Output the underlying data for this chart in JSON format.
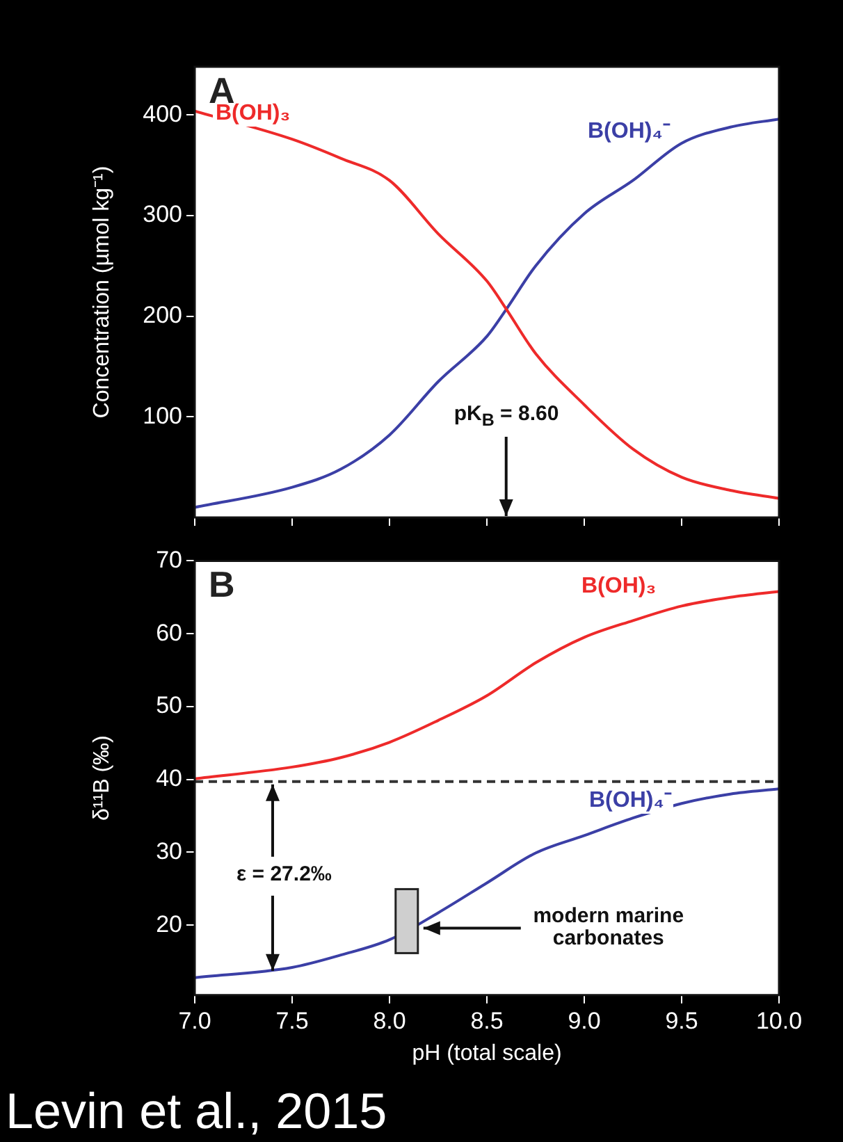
{
  "chart_data": [
    {
      "type": "line",
      "ylabel": "Concentration (µmol kg⁻¹)",
      "x": [
        7,
        7.5,
        7.75,
        8,
        8.25,
        8.5,
        8.6,
        8.75,
        9,
        9.25,
        9.5,
        9.75,
        10
      ],
      "series": [
        {
          "name": "B(OH)₃",
          "color": "#ee2a2a",
          "values": [
            404,
            376,
            357,
            335,
            282,
            235,
            207,
            163,
            112,
            68,
            40,
            27,
            19
          ]
        },
        {
          "name": "B(OH)₄⁻",
          "color": "#3b3fa6",
          "values": [
            10,
            30,
            48,
            82,
            135,
            180,
            207,
            250,
            302,
            335,
            372,
            388,
            396
          ]
        }
      ],
      "xlim": [
        7,
        10
      ],
      "xticks": [
        7,
        7.5,
        8,
        8.5,
        9,
        9.5,
        10
      ],
      "ylim": [
        0,
        448
      ],
      "yticks": [
        100,
        200,
        300,
        400
      ],
      "tick_labels": "y",
      "annotations": [
        "A",
        "pK$_{B}$ = 8.60"
      ]
    },
    {
      "type": "line",
      "xlabel": "pH (total scale)",
      "ylabel": "δ¹¹B (‰)",
      "x": [
        7,
        7.5,
        7.75,
        8,
        8.25,
        8.5,
        8.75,
        9,
        9.25,
        9.5,
        9.75,
        10
      ],
      "series": [
        {
          "name": "B(OH)₃",
          "color": "#ee2a2a",
          "values": [
            40.1,
            41.7,
            43,
            45.1,
            48.1,
            51.5,
            56,
            59.5,
            61.8,
            63.8,
            65,
            65.8
          ]
        },
        {
          "name": "B(OH)₄⁻",
          "color": "#3b3fa6",
          "values": [
            12.8,
            14.2,
            15.9,
            18,
            21.7,
            25.8,
            29.9,
            32.3,
            34.7,
            36.7,
            38,
            38.7
          ]
        }
      ],
      "xlim": [
        7,
        10
      ],
      "xticks": [
        {
          "value": 7,
          "label": "7.0"
        },
        7.5,
        {
          "value": 8,
          "label": "8.0"
        },
        8.5,
        {
          "value": 9,
          "label": "9.0"
        },
        9.5,
        {
          "value": 10,
          "label": "10.0"
        }
      ],
      "ylim": [
        10.4,
        70
      ],
      "yticks": [
        20,
        30,
        40,
        50,
        60,
        70
      ],
      "ref_lines": [
        {
          "axis": "y",
          "value": 39.7,
          "color": "#333333",
          "line_style": "dashed"
        }
      ],
      "annotations": [
        "B",
        {
          "text": "ε = 27.2‰",
          "x": 7.4,
          "y": 39.7
        },
        {
          "text": "modern marine carbonates",
          "x": 8.16,
          "y": 19.6
        },
        "Levin et al., 2015"
      ]
    }
  ]
}
